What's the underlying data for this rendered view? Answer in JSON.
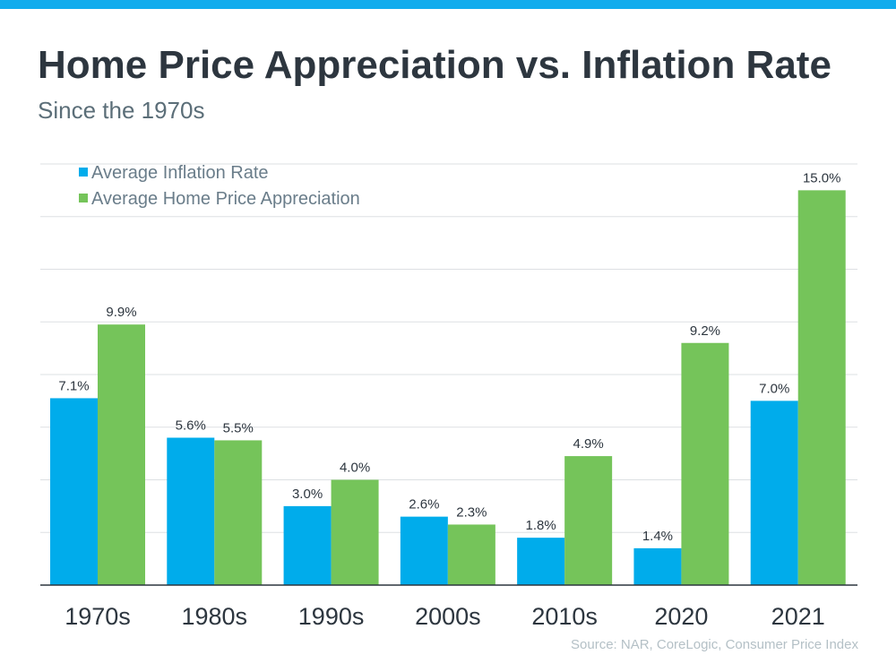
{
  "header": {
    "title": "Home Price Appreciation vs. Inflation Rate",
    "subtitle": "Since the 1970s"
  },
  "footer": {
    "source": "Source: NAR, CoreLogic, Consumer Price Index"
  },
  "colors": {
    "top_bar": "#12aced",
    "inflation": "#00aceb",
    "home": "#75c45a"
  },
  "chart_data": {
    "type": "bar",
    "categories": [
      "1970s",
      "1980s",
      "1990s",
      "2000s",
      "2010s",
      "2020",
      "2021"
    ],
    "series": [
      {
        "name": "Average Inflation Rate",
        "values": [
          7.1,
          5.6,
          3.0,
          2.6,
          1.8,
          1.4,
          7.0
        ],
        "labels": [
          "7.1%",
          "5.6%",
          "3.0%",
          "2.6%",
          "1.8%",
          "1.4%",
          "7.0%"
        ]
      },
      {
        "name": "Average Home Price Appreciation",
        "values": [
          9.9,
          5.5,
          4.0,
          2.3,
          4.9,
          9.2,
          15.0
        ],
        "labels": [
          "9.9%",
          "5.5%",
          "4.0%",
          "2.3%",
          "4.9%",
          "9.2%",
          "15.0%"
        ]
      }
    ],
    "ylim": [
      0,
      16
    ],
    "grid": true,
    "legend": "top-left",
    "unit": "%"
  }
}
